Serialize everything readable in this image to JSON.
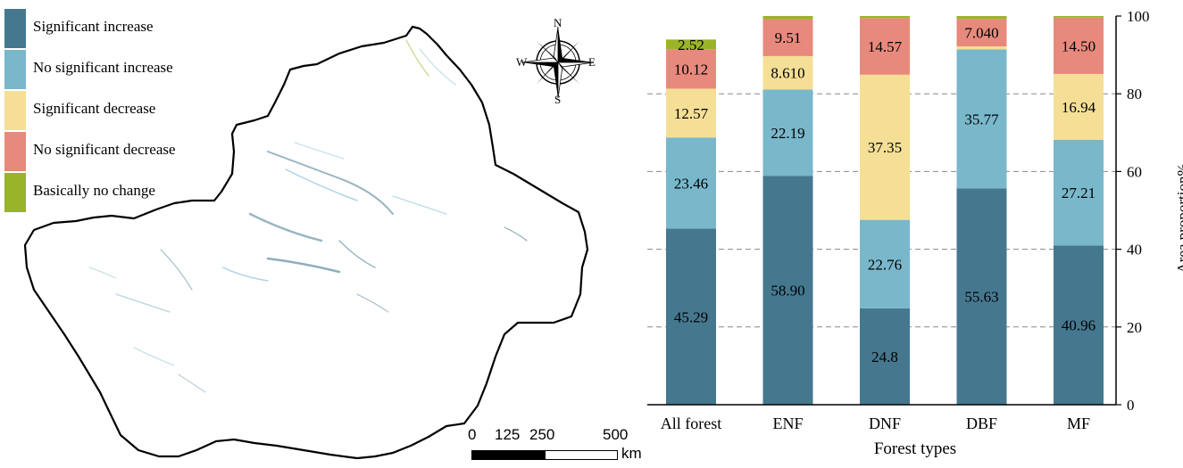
{
  "map": {
    "legend": [
      {
        "label": "Significant increase",
        "color": "#45788f"
      },
      {
        "label": "No significant increase",
        "color": "#79b7cb"
      },
      {
        "label": "Significant decrease",
        "color": "#f5df96"
      },
      {
        "label": "No significant decrease",
        "color": "#e8897d"
      },
      {
        "label": "Basically no change",
        "color": "#9ab42a"
      }
    ],
    "compass": {
      "n": "N",
      "e": "E",
      "s": "S",
      "w": "W"
    },
    "scale_bar": {
      "ticks": [
        "0",
        "125",
        "250",
        "500"
      ],
      "unit": "km"
    }
  },
  "chart_data": {
    "type": "bar",
    "stacked": true,
    "categories": [
      "All forest",
      "ENF",
      "DNF",
      "DBF",
      "MF"
    ],
    "series": [
      {
        "name": "Significant increase",
        "color": "#45788f",
        "values": [
          45.29,
          58.9,
          24.8,
          55.63,
          40.96
        ],
        "labels": [
          "45.29",
          "58.90",
          "24.8",
          "55.63",
          "40.96"
        ]
      },
      {
        "name": "No significant increase",
        "color": "#79b7cb",
        "values": [
          23.46,
          22.19,
          22.76,
          35.77,
          27.21
        ],
        "labels": [
          "23.46",
          "22.19",
          "22.76",
          "35.77",
          "27.21"
        ]
      },
      {
        "name": "Significant decrease",
        "color": "#f5df96",
        "values": [
          12.57,
          8.61,
          37.35,
          0.8,
          16.94
        ],
        "labels": [
          "12.57",
          "8.610",
          "37.35",
          "",
          "16.94"
        ]
      },
      {
        "name": "No significant decrease",
        "color": "#e8897d",
        "values": [
          10.12,
          9.51,
          14.57,
          7.04,
          14.5
        ],
        "labels": [
          "10.12",
          "9.51",
          "14.57",
          "7.040",
          "14.50"
        ]
      },
      {
        "name": "Basically no change",
        "color": "#9ab42a",
        "values": [
          2.52,
          0.8,
          0.52,
          0.76,
          0.39
        ],
        "labels": [
          "2.52",
          "",
          "",
          "",
          ""
        ]
      }
    ],
    "xlabel": "Forest types",
    "ylabel": "Area proportion%",
    "ylim": [
      0,
      100
    ],
    "yticks": [
      "0",
      "20",
      "40",
      "60",
      "80",
      "100"
    ],
    "grid": "dashed horizontal"
  }
}
